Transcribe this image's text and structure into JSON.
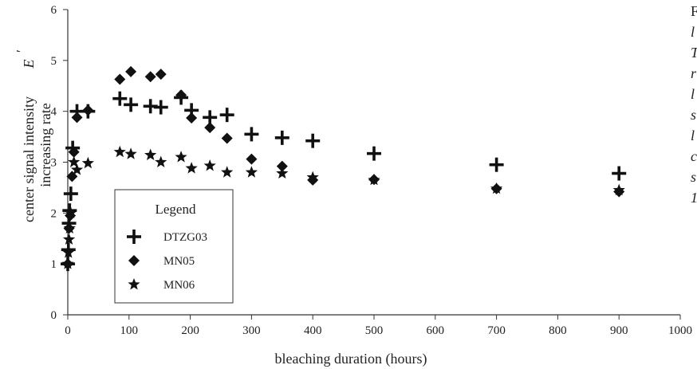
{
  "chart_data": {
    "type": "scatter",
    "title": "",
    "xlabel": "bleaching duration (hours)",
    "ylabel_symbol": "E",
    "ylabel_line1": "center signal intensity",
    "ylabel_line2": "increasing rate",
    "xlim": [
      0,
      1000
    ],
    "ylim": [
      0,
      6
    ],
    "xticks": [
      0,
      100,
      200,
      300,
      400,
      500,
      600,
      700,
      800,
      900,
      1000
    ],
    "yticks": [
      0,
      1,
      2,
      3,
      4,
      5,
      6
    ],
    "grid": false,
    "legend": {
      "title": "Legend",
      "placement": "center-left"
    },
    "series": [
      {
        "name": "DTZG03",
        "marker": "plus",
        "points": [
          [
            0,
            1.0
          ],
          [
            1,
            1.28
          ],
          [
            2,
            1.8
          ],
          [
            3,
            2.05
          ],
          [
            5,
            2.38
          ],
          [
            8,
            3.28
          ],
          [
            15,
            4.0
          ],
          [
            33,
            4.0
          ],
          [
            85,
            4.25
          ],
          [
            103,
            4.13
          ],
          [
            135,
            4.1
          ],
          [
            152,
            4.08
          ],
          [
            185,
            4.27
          ],
          [
            202,
            4.02
          ],
          [
            232,
            3.88
          ],
          [
            260,
            3.93
          ],
          [
            300,
            3.55
          ],
          [
            350,
            3.48
          ],
          [
            400,
            3.42
          ],
          [
            500,
            3.17
          ],
          [
            700,
            2.95
          ],
          [
            900,
            2.78
          ]
        ]
      },
      {
        "name": "MN05",
        "marker": "diamond",
        "points": [
          [
            0,
            1.0
          ],
          [
            2,
            1.7
          ],
          [
            4,
            1.95
          ],
          [
            7,
            2.72
          ],
          [
            10,
            3.2
          ],
          [
            15,
            3.88
          ],
          [
            33,
            4.02
          ],
          [
            85,
            4.63
          ],
          [
            103,
            4.78
          ],
          [
            135,
            4.68
          ],
          [
            152,
            4.73
          ],
          [
            185,
            4.32
          ],
          [
            202,
            3.87
          ],
          [
            232,
            3.68
          ],
          [
            260,
            3.47
          ],
          [
            300,
            3.06
          ],
          [
            350,
            2.92
          ],
          [
            400,
            2.65
          ],
          [
            500,
            2.66
          ],
          [
            700,
            2.48
          ],
          [
            900,
            2.42
          ]
        ]
      },
      {
        "name": "MN06",
        "marker": "star",
        "points": [
          [
            0,
            1.0
          ],
          [
            1,
            1.22
          ],
          [
            2,
            1.48
          ],
          [
            3,
            1.7
          ],
          [
            5,
            2.0
          ],
          [
            10,
            3.0
          ],
          [
            15,
            2.85
          ],
          [
            33,
            2.98
          ],
          [
            85,
            3.2
          ],
          [
            103,
            3.16
          ],
          [
            135,
            3.14
          ],
          [
            152,
            3.0
          ],
          [
            185,
            3.1
          ],
          [
            202,
            2.88
          ],
          [
            232,
            2.93
          ],
          [
            260,
            2.8
          ],
          [
            300,
            2.8
          ],
          [
            350,
            2.78
          ],
          [
            400,
            2.7
          ],
          [
            500,
            2.65
          ],
          [
            700,
            2.48
          ],
          [
            900,
            2.45
          ]
        ]
      }
    ]
  },
  "side_text": {
    "lines": [
      "F",
      "l",
      "T",
      "r",
      "l",
      "s",
      "l",
      "c",
      "s",
      "1"
    ]
  }
}
